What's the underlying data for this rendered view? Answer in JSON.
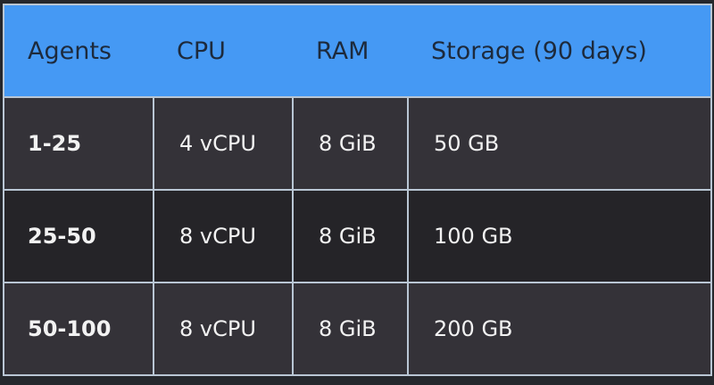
{
  "table": {
    "headers": [
      "Agents",
      "CPU",
      "RAM",
      "Storage (90 days)"
    ],
    "rows": [
      [
        "1-25",
        "4 vCPU",
        "8 GiB",
        "50 GB"
      ],
      [
        "25-50",
        "8 vCPU",
        "8 GiB",
        "100 GB"
      ],
      [
        "50-100",
        "8 vCPU",
        "8 GiB",
        "200 GB"
      ]
    ]
  },
  "colors": {
    "header_bg": "#4599f4",
    "header_text": "#1d2a3c",
    "row_odd": "#343238",
    "row_even": "#252428",
    "border": "#b9c6d4"
  }
}
